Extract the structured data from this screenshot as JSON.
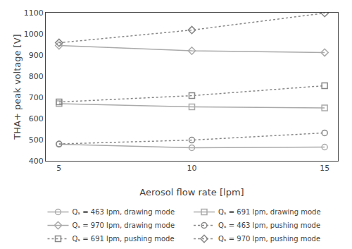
{
  "chart_data": {
    "type": "line",
    "x": [
      5,
      10,
      15
    ],
    "xlabel": "Aerosol flow rate [lpm]",
    "ylabel": "THA+ peak voltage [V]",
    "xlim": [
      4.5,
      15.5
    ],
    "ylim": [
      400,
      1100
    ],
    "xticks": [
      5,
      10,
      15
    ],
    "yticks": [
      400,
      500,
      600,
      700,
      800,
      900,
      1000,
      1100
    ],
    "grid": false,
    "legend": "bottom",
    "series": [
      {
        "name": "Qₛ = 463 lpm, drawing mode",
        "color": "#aaaaaa",
        "marker": "circle",
        "line_style": "solid",
        "values": [
          478,
          462,
          465
        ]
      },
      {
        "name": "Qₛ = 691 lpm, drawing mode",
        "color": "#aaaaaa",
        "marker": "square",
        "line_style": "solid",
        "values": [
          670,
          655,
          650
        ]
      },
      {
        "name": "Qₛ = 970 lpm, drawing mode",
        "color": "#aaaaaa",
        "marker": "diamond",
        "line_style": "solid",
        "values": [
          945,
          920,
          912
        ]
      },
      {
        "name": "Qₛ = 463 lpm, pushing mode",
        "color": "#888888",
        "marker": "circle",
        "line_style": "dotted",
        "values": [
          480,
          498,
          532
        ]
      },
      {
        "name": "Qₛ = 691 lpm, pushing mode",
        "color": "#888888",
        "marker": "square",
        "line_style": "dotted",
        "values": [
          678,
          708,
          755
        ]
      },
      {
        "name": "Qₛ = 970 lpm, pushing mode",
        "color": "#888888",
        "marker": "diamond",
        "line_style": "dotted",
        "values": [
          958,
          1018,
          1098
        ]
      }
    ]
  }
}
